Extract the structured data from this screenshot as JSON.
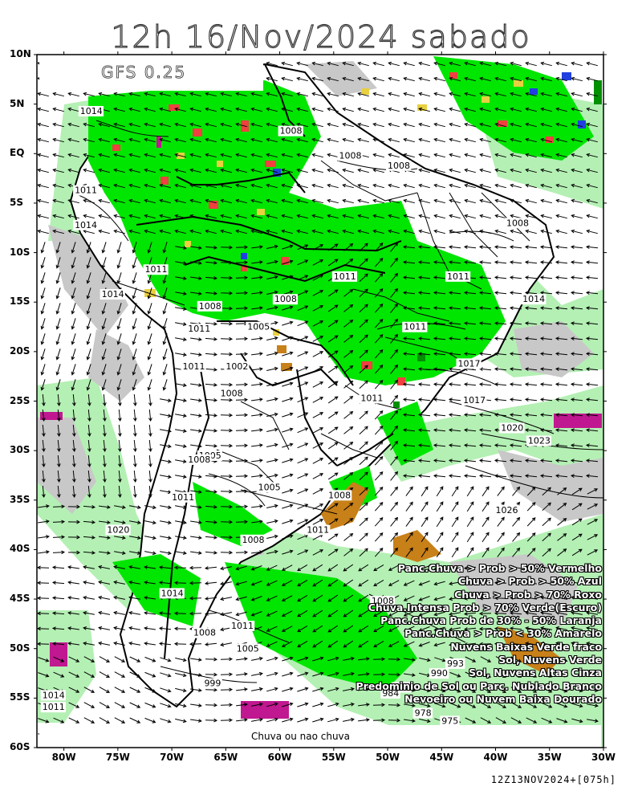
{
  "title": "12h 16/Nov/2024 sabado",
  "model": "GFS 0.25",
  "bottom_label": "Chuva ou nao chuva",
  "run_info": "12Z13NOV2024+[075h]",
  "lat_labels": [
    "10N",
    "5N",
    "EQ",
    "5S",
    "10S",
    "15S",
    "20S",
    "25S",
    "30S",
    "35S",
    "40S",
    "45S",
    "50S",
    "55S",
    "60S"
  ],
  "lon_labels": [
    "80W",
    "75W",
    "70W",
    "65W",
    "60W",
    "55W",
    "50W",
    "45W",
    "40W",
    "35W",
    "30W"
  ],
  "isobars": [
    {
      "text": "1014",
      "lon": -78.5,
      "lat": 4.0
    },
    {
      "text": "1008",
      "lon": -60.0,
      "lat": 2.0
    },
    {
      "text": "1008",
      "lon": -54.5,
      "lat": -0.5
    },
    {
      "text": "1008",
      "lon": -50.0,
      "lat": -1.5
    },
    {
      "text": "1011",
      "lon": -79.0,
      "lat": -4.0
    },
    {
      "text": "1014",
      "lon": -79.0,
      "lat": -7.5
    },
    {
      "text": "1008",
      "lon": -39.0,
      "lat": -7.3
    },
    {
      "text": "1011",
      "lon": -72.5,
      "lat": -12.0
    },
    {
      "text": "1011",
      "lon": -55.0,
      "lat": -12.7
    },
    {
      "text": "1011",
      "lon": -44.5,
      "lat": -12.7
    },
    {
      "text": "1014",
      "lon": -76.5,
      "lat": -14.5
    },
    {
      "text": "1014",
      "lon": -37.5,
      "lat": -15.0
    },
    {
      "text": "1008",
      "lon": -60.5,
      "lat": -15.0
    },
    {
      "text": "1008",
      "lon": -67.5,
      "lat": -15.7
    },
    {
      "text": "1005",
      "lon": -63.0,
      "lat": -17.8
    },
    {
      "text": "1011",
      "lon": -48.5,
      "lat": -17.8
    },
    {
      "text": "1011",
      "lon": -68.5,
      "lat": -18.0
    },
    {
      "text": "1017",
      "lon": -43.5,
      "lat": -21.5
    },
    {
      "text": "1011",
      "lon": -69.0,
      "lat": -21.8
    },
    {
      "text": "1002",
      "lon": -65.0,
      "lat": -21.8
    },
    {
      "text": "1008",
      "lon": -65.5,
      "lat": -24.5
    },
    {
      "text": "1011",
      "lon": -52.5,
      "lat": -25.0
    },
    {
      "text": "1017",
      "lon": -43.0,
      "lat": -25.2
    },
    {
      "text": "1020",
      "lon": -39.5,
      "lat": -28.0
    },
    {
      "text": "1023",
      "lon": -37.0,
      "lat": -29.3
    },
    {
      "text": "1005",
      "lon": -67.5,
      "lat": -30.8
    },
    {
      "text": "1008",
      "lon": -68.5,
      "lat": -31.2
    },
    {
      "text": "1005",
      "lon": -62.0,
      "lat": -34.0
    },
    {
      "text": "1008",
      "lon": -55.5,
      "lat": -34.8
    },
    {
      "text": "1011",
      "lon": -70.0,
      "lat": -35.0
    },
    {
      "text": "1026",
      "lon": -40.0,
      "lat": -36.3
    },
    {
      "text": "1020",
      "lon": -76.0,
      "lat": -38.3
    },
    {
      "text": "1011",
      "lon": -57.5,
      "lat": -38.3
    },
    {
      "text": "1008",
      "lon": -63.5,
      "lat": -39.3
    },
    {
      "text": "1014",
      "lon": -71.0,
      "lat": -44.7
    },
    {
      "text": "1008",
      "lon": -51.5,
      "lat": -45.5
    },
    {
      "text": "1011",
      "lon": -64.5,
      "lat": -48.0
    },
    {
      "text": "1008",
      "lon": -68.0,
      "lat": -48.7
    },
    {
      "text": "1005",
      "lon": -64.0,
      "lat": -50.3
    },
    {
      "text": "993",
      "lon": -44.5,
      "lat": -51.8
    },
    {
      "text": "990",
      "lon": -46.0,
      "lat": -52.8
    },
    {
      "text": "999",
      "lon": -67.0,
      "lat": -53.8
    },
    {
      "text": "987",
      "lon": -49.5,
      "lat": -54.2
    },
    {
      "text": "984",
      "lon": -50.5,
      "lat": -54.8
    },
    {
      "text": "1014",
      "lon": -82.0,
      "lat": -55.0
    },
    {
      "text": "1011",
      "lon": -82.0,
      "lat": -56.2
    },
    {
      "text": "978",
      "lon": -47.5,
      "lat": -56.8
    },
    {
      "text": "975",
      "lon": -45.0,
      "lat": -57.6
    }
  ],
  "legend": [
    "Panc.Chuva > Prob > 50% Vermelho",
    "Chuva > Prob > 50% Azul",
    "Chuva > Prob > 70% Roxo",
    "Chuva.Intensa Prob > 70% Verde(Escuro)",
    "Panc.Chuva Prob de 30% - 50% Laranja",
    "Panc.Chuva > Prob < 30% Amarelo",
    "Nuvens Baixas Verde fraco",
    "Sol, Nuvens Verde",
    "Sol, Nuvens Altas Cinza",
    "Predominio de Sol ou Parc. Nublado Branco",
    "Nevoeiro ou Nuvem Baixa Dourado"
  ],
  "colors": {
    "light_green": "#b4f0b4",
    "green": "#00e600",
    "red": "#f04040",
    "yellow": "#e8d040",
    "blue": "#2040e0",
    "purple": "#c01890",
    "gray": "#c8c8c8",
    "gold": "#c88018",
    "dark_green": "#009000"
  }
}
